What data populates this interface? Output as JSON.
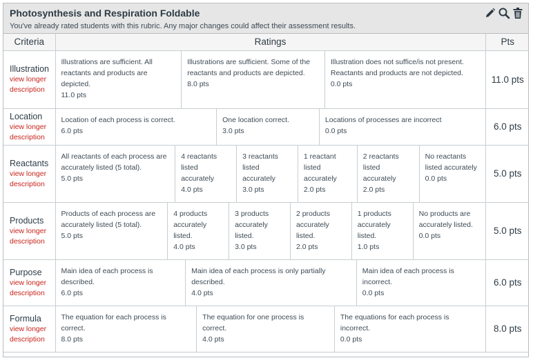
{
  "header": {
    "title": "Photosynthesis and Respiration Foldable",
    "notice": "You've already rated students with this rubric. Any major changes could affect their assessment results."
  },
  "tools": {
    "edit_icon": "pencil-icon",
    "search_icon": "magnifier-icon",
    "delete_icon": "trash-icon"
  },
  "columns": {
    "criteria": "Criteria",
    "ratings": "Ratings",
    "points": "Pts"
  },
  "criteria": [
    {
      "name": "Illustration",
      "link": "view longer description",
      "points": "11.0 pts",
      "ratings": [
        {
          "desc": "Illustrations are sufficient. All reactants and products are depicted.",
          "pts": "11.0 pts"
        },
        {
          "desc": "Illustrations are sufficient. Some of the reactants and products are depicted.",
          "pts": "8.0 pts"
        },
        {
          "desc": "Illustration does not suffice/is not present. Reactants and products are not depicted.",
          "pts": "0.0 pts"
        }
      ]
    },
    {
      "name": "Location",
      "link": "view longer description",
      "points": "6.0 pts",
      "ratings": [
        {
          "desc": "Location of each process is correct.",
          "pts": "6.0 pts"
        },
        {
          "desc": "One location correct.",
          "pts": "3.0 pts"
        },
        {
          "desc": "Locations of processes are incorrect",
          "pts": "0.0 pts"
        }
      ]
    },
    {
      "name": "Reactants",
      "link": "view longer description",
      "points": "5.0 pts",
      "ratings": [
        {
          "desc": "All reactants of each process are accurately listed (5 total).",
          "pts": "5.0 pts"
        },
        {
          "desc": "4 reactants listed accurately",
          "pts": "4.0 pts"
        },
        {
          "desc": "3 reactants listed accurately",
          "pts": "3.0 pts"
        },
        {
          "desc": "1 reactant listed accurately",
          "pts": "2.0 pts"
        },
        {
          "desc": "2 reactants listed accurately",
          "pts": "2.0 pts"
        },
        {
          "desc": "No reactants listed accurately",
          "pts": "0.0 pts"
        }
      ]
    },
    {
      "name": "Products",
      "link": "view longer description",
      "points": "5.0 pts",
      "ratings": [
        {
          "desc": "Products of each process are accurately listed (5 total).",
          "pts": "5.0 pts"
        },
        {
          "desc": "4 products accurately listed.",
          "pts": "4.0 pts"
        },
        {
          "desc": "3 products accurately listed.",
          "pts": "3.0 pts"
        },
        {
          "desc": "2 products accurately listed.",
          "pts": "2.0 pts"
        },
        {
          "desc": "1 products accurately listed.",
          "pts": "1.0 pts"
        },
        {
          "desc": "No products are accurately listed.",
          "pts": "0.0 pts"
        }
      ]
    },
    {
      "name": "Purpose",
      "link": "view longer description",
      "points": "6.0 pts",
      "ratings": [
        {
          "desc": "Main idea of each process is described.",
          "pts": "6.0 pts"
        },
        {
          "desc": "Main idea of each process is only partially described.",
          "pts": "4.0 pts"
        },
        {
          "desc": "Main idea of each process is incorrect.",
          "pts": "0.0 pts"
        }
      ]
    },
    {
      "name": "Formula",
      "link": "view longer description",
      "points": "8.0 pts",
      "ratings": [
        {
          "desc": "The equation for each process is correct.",
          "pts": "8.0 pts"
        },
        {
          "desc": "The equation for one process is correct.",
          "pts": "4.0 pts"
        },
        {
          "desc": "The equations for each process is incorrect.",
          "pts": "0.0 pts"
        }
      ]
    }
  ]
}
